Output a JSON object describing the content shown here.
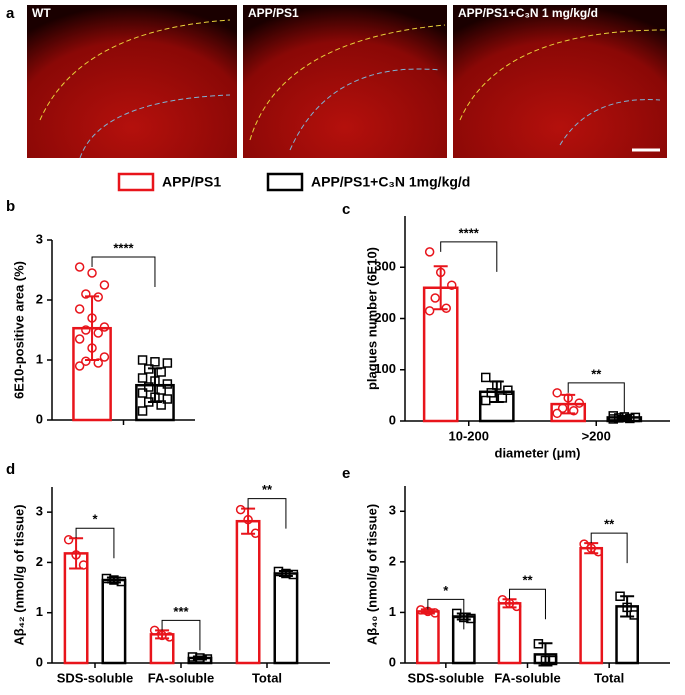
{
  "panel_labels": [
    "a",
    "b",
    "c",
    "d",
    "e"
  ],
  "images": [
    {
      "label": "WT"
    },
    {
      "label": "APP/PS1"
    },
    {
      "label": "APP/PS1+C₃N 1 mg/kg/d"
    }
  ],
  "legend": [
    {
      "name": "APP/PS1",
      "color": "#e8141b"
    },
    {
      "name": "APP/PS1+C₃N 1mg/kg/d",
      "color": "#000000"
    }
  ],
  "chart_data": [
    {
      "type": "bar",
      "ylabel": "6E10-positive area (%)",
      "categories": [
        null
      ],
      "ylim": [
        0,
        3
      ],
      "yticks": [
        0,
        1,
        2,
        3
      ],
      "annotations": [
        "****"
      ],
      "series": [
        {
          "name": "APP/PS1",
          "color": "#e8141b",
          "values": [
            1.53
          ],
          "errors": [
            0.53
          ],
          "points": [
            [
              2.55,
              2.45,
              2.25,
              2.1,
              2.05,
              1.85,
              1.7,
              1.55,
              1.5,
              1.45,
              1.35,
              1.2,
              1.05,
              0.98,
              0.95,
              0.9
            ]
          ]
        },
        {
          "name": "APP/PS1+C₃N 1mg/kg/d",
          "color": "#000000",
          "values": [
            0.58
          ],
          "errors": [
            0.28
          ],
          "points": [
            [
              1.0,
              0.97,
              0.95,
              0.85,
              0.8,
              0.7,
              0.65,
              0.6,
              0.55,
              0.5,
              0.45,
              0.38,
              0.35,
              0.3,
              0.25,
              0.15
            ]
          ]
        }
      ]
    },
    {
      "type": "bar",
      "ylabel": "plaques number (6E10)",
      "xlabel": "diameter (μm)",
      "categories": [
        "10-200",
        ">200"
      ],
      "ylim": [
        0,
        400
      ],
      "yticks": [
        0,
        100,
        200,
        300
      ],
      "annotations": [
        "****",
        "**"
      ],
      "series": [
        {
          "name": "APP/PS1",
          "color": "#e8141b",
          "values": [
            260,
            33
          ],
          "errors": [
            42,
            18
          ],
          "points": [
            [
              330,
              290,
              265,
              240,
              220,
              215
            ],
            [
              55,
              45,
              35,
              25,
              20,
              15
            ]
          ]
        },
        {
          "name": "APP/PS1+C₃N 1mg/kg/d",
          "color": "#000000",
          "values": [
            57,
            7
          ],
          "errors": [
            20,
            3
          ],
          "points": [
            [
              85,
              70,
              60,
              55,
              45,
              40
            ],
            [
              10,
              8,
              7,
              6,
              5,
              4
            ]
          ]
        }
      ]
    },
    {
      "type": "bar",
      "ylabel": "Aβ₄₂ (nmol/g of tissue)",
      "categories": [
        "SDS-soluble",
        "FA-soluble",
        "Total"
      ],
      "ylim": [
        0,
        3.5
      ],
      "yticks": [
        0,
        1,
        2,
        3
      ],
      "annotations": [
        "*",
        "***",
        "**"
      ],
      "series": [
        {
          "name": "APP/PS1",
          "color": "#e8141b",
          "values": [
            2.18,
            0.57,
            2.82
          ],
          "errors": [
            0.3,
            0.08,
            0.25
          ],
          "points": [
            [
              2.45,
              2.15,
              1.95
            ],
            [
              0.65,
              0.55,
              0.52
            ],
            [
              3.05,
              2.85,
              2.58
            ]
          ]
        },
        {
          "name": "APP/PS1+C₃N 1mg/kg/d",
          "color": "#000000",
          "values": [
            1.65,
            0.1,
            1.78
          ],
          "errors": [
            0.05,
            0.03,
            0.05
          ],
          "points": [
            [
              1.68,
              1.65,
              1.62
            ],
            [
              0.12,
              0.1,
              0.08
            ],
            [
              1.82,
              1.78,
              1.76
            ]
          ]
        }
      ]
    },
    {
      "type": "bar",
      "ylabel": "Aβ₄₀ (nmol/g of tissue)",
      "categories": [
        "SDS-soluble",
        "FA-soluble",
        "Total"
      ],
      "ylim": [
        0,
        3.5
      ],
      "yticks": [
        0,
        1,
        2,
        3
      ],
      "annotations": [
        "*",
        "**",
        "**"
      ],
      "series": [
        {
          "name": "APP/PS1",
          "color": "#e8141b",
          "values": [
            1.02,
            1.18,
            2.27
          ],
          "errors": [
            0.04,
            0.08,
            0.1
          ],
          "points": [
            [
              1.05,
              1.02,
              0.99
            ],
            [
              1.25,
              1.18,
              1.12
            ],
            [
              2.35,
              2.27,
              2.2
            ]
          ]
        },
        {
          "name": "APP/PS1+C₃N 1mg/kg/d",
          "color": "#000000",
          "values": [
            0.92,
            0.17,
            1.12
          ],
          "errors": [
            0.06,
            0.22,
            0.2
          ],
          "points": [
            [
              0.98,
              0.9,
              0.88
            ],
            [
              0.38,
              0.05,
              0.05
            ],
            [
              1.32,
              1.1,
              0.95
            ]
          ]
        }
      ]
    }
  ]
}
